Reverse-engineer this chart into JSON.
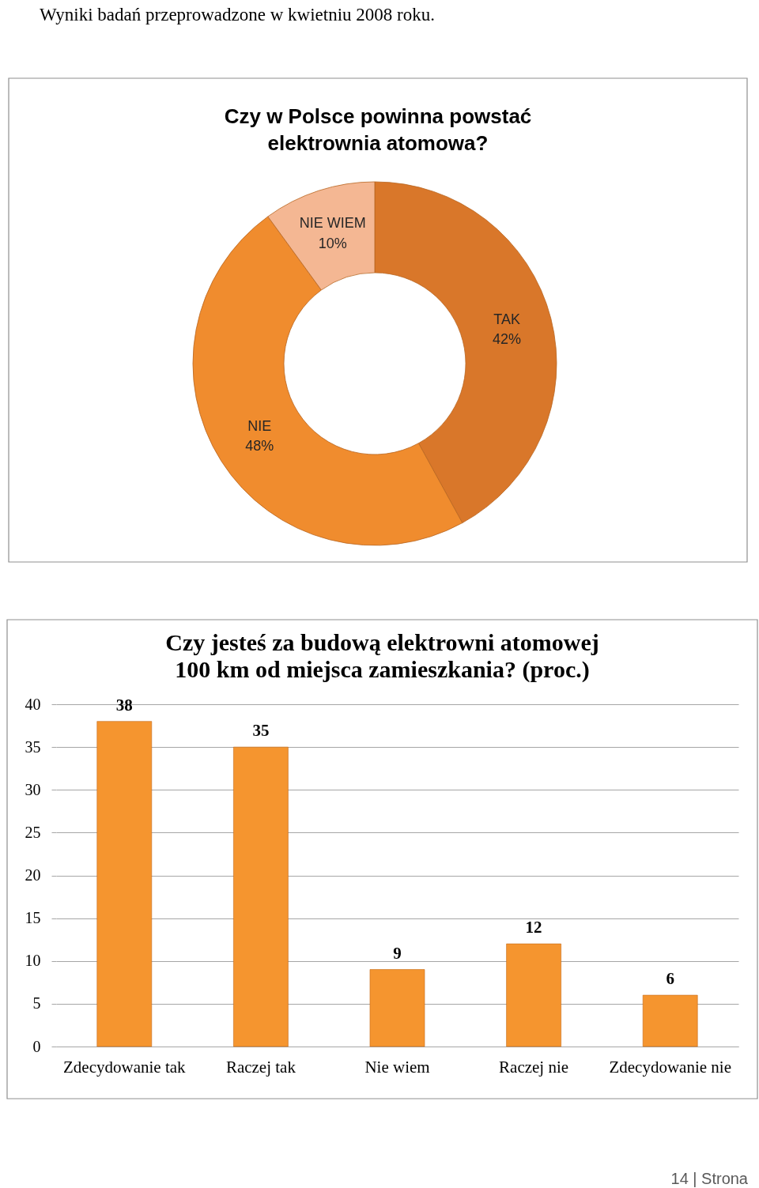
{
  "chart_data": [
    {
      "type": "donut",
      "title": "Czy w Polsce powinna powstać\nelektrownia atomowa?",
      "categories": [
        "TAK",
        "NIE",
        "NIE WIEM"
      ],
      "values": [
        42,
        48,
        10
      ],
      "colors": [
        "#d9772a",
        "#f08c2e",
        "#f4b793"
      ],
      "value_labels": [
        "42%",
        "48%",
        "10%"
      ],
      "annotations": [
        "Wyniki badań przeprowadzone w kwietniu 2008 roku."
      ]
    },
    {
      "type": "bar",
      "title": "Czy jesteś za budową elektrowni atomowej\n100 km od miejsca zamieszkania? (proc.)",
      "categories": [
        "Zdecydowanie tak",
        "Raczej tak",
        "Nie wiem",
        "Raczej nie",
        "Zdecydowanie nie"
      ],
      "values": [
        38,
        35,
        9,
        12,
        6
      ],
      "color": "#f5952f",
      "ylim": [
        0,
        40
      ],
      "yticks": [
        0,
        5,
        10,
        15,
        20,
        25,
        30,
        35,
        40
      ],
      "grid": "y",
      "data_labels": true,
      "annotations": [
        "14 | Strona"
      ]
    }
  ]
}
